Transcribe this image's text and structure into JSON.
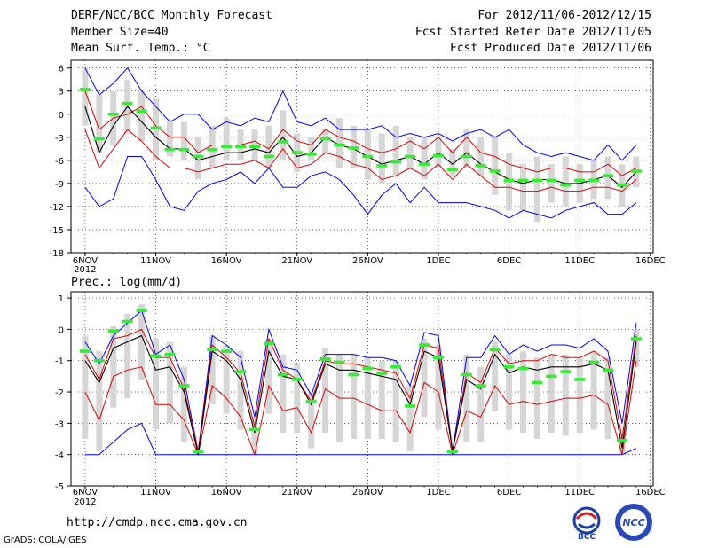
{
  "header": {
    "title": "DERF/NCC/BCC Monthly Forecast",
    "member_size": "Member Size=40",
    "variable1": "Mean Surf. Temp.: °C",
    "period": "For 2012/11/06-2012/12/15",
    "started": "Fcst Started Refer Date 2012/11/05",
    "produced": "Fcst Produced Date 2012/11/06"
  },
  "footer": {
    "url": "http://cmdp.ncc.cma.gov.cn",
    "grads": "GrADS: COLA/IGES",
    "logo_bcc": "BCC",
    "logo_ncc": "NCC"
  },
  "colors": {
    "envelope": "#0000ff",
    "spread": "#dd0000",
    "mean": "#000000",
    "median": "#33ee33",
    "box": "#d6d6d6"
  },
  "chart_data": [
    {
      "type": "line",
      "title": "Mean Surf. Temp.: °C",
      "days": 40,
      "start_day_index": 1,
      "x_tick_labels": [
        "6NOV",
        "11NOV",
        "16NOV",
        "21NOV",
        "26NOV",
        "1DEC",
        "6DEC",
        "11DEC",
        "16DEC"
      ],
      "x_tick_day": [
        1,
        6,
        11,
        16,
        21,
        26,
        31,
        36,
        41
      ],
      "year_label": "2012",
      "ylim": [
        -18,
        7
      ],
      "y_ticks": [
        6,
        3,
        0,
        -3,
        -6,
        -9,
        -12,
        -15,
        -18
      ],
      "y_tick_labels": [
        "6",
        "3",
        "0",
        "-3",
        "-6",
        "-9",
        "-12",
        "-15",
        "-18"
      ],
      "series": [
        {
          "name": "max",
          "values": [
            6,
            2.5,
            4,
            6,
            3,
            1,
            -1,
            0,
            0,
            -2,
            -1,
            -1.5,
            -0.5,
            -1,
            3,
            -1,
            -1.5,
            -0.5,
            -2,
            -2,
            -2,
            -1.5,
            -3,
            -2.5,
            -3,
            -2.5,
            -3.5,
            -2.5,
            -2,
            -3,
            -2,
            -4,
            -5,
            -5.5,
            -5,
            -5.5,
            -6,
            -4,
            -6,
            -4
          ]
        },
        {
          "name": "upper",
          "values": [
            3,
            -2,
            -0.5,
            0,
            1,
            -1.5,
            -3,
            -3,
            -5,
            -4,
            -4,
            -4,
            -3.5,
            -4.5,
            -2,
            -3.5,
            -4,
            -2,
            -3,
            -3.5,
            -4.5,
            -5,
            -4.5,
            -3.5,
            -4.5,
            -3,
            -5,
            -3,
            -5,
            -5.5,
            -6.5,
            -7,
            -7.5,
            -7,
            -7,
            -7.5,
            -7.5,
            -6.5,
            -8,
            -7
          ]
        },
        {
          "name": "mean",
          "values": [
            1,
            -5,
            -1.5,
            1,
            -1,
            -3,
            -4.5,
            -4.5,
            -6,
            -5.5,
            -5,
            -5,
            -4.5,
            -5,
            -3,
            -5.5,
            -5,
            -3,
            -4,
            -4.5,
            -5.5,
            -6.5,
            -6,
            -5.5,
            -6.5,
            -5,
            -6.5,
            -5,
            -6.5,
            -7.5,
            -8.5,
            -9,
            -8.5,
            -8.5,
            -9,
            -9,
            -8.5,
            -8,
            -9.5,
            -7.5
          ]
        },
        {
          "name": "lower",
          "values": [
            -2,
            -7,
            -4.5,
            -2,
            -3.5,
            -5.5,
            -7,
            -7,
            -7.5,
            -7,
            -6.5,
            -6.5,
            -6,
            -7,
            -4.5,
            -7,
            -6.5,
            -5,
            -5.5,
            -6.5,
            -7,
            -8.5,
            -8,
            -7,
            -8,
            -6.5,
            -8.5,
            -6.5,
            -8,
            -9.5,
            -9.5,
            -10,
            -10,
            -9.5,
            -10,
            -10,
            -9.5,
            -9.5,
            -10,
            -8.5
          ]
        },
        {
          "name": "min",
          "values": [
            -9.5,
            -12,
            -11,
            -5.5,
            -5.5,
            -8.5,
            -12,
            -12.5,
            -10,
            -9,
            -8.5,
            -7.5,
            -9,
            -7,
            -9.5,
            -9.5,
            -8,
            -7.5,
            -8.5,
            -10.5,
            -13,
            -10.5,
            -9,
            -11.5,
            -9.5,
            -11.5,
            -11.5,
            -11.5,
            -12,
            -12.5,
            -13.5,
            -12.5,
            -13,
            -13.5,
            -12.5,
            -12,
            -11.5,
            -13,
            -13,
            -11.5
          ]
        },
        {
          "name": "median",
          "values": [
            3.2,
            -3.2,
            0,
            1.4,
            0.4,
            -1.8,
            -4.6,
            -4.6,
            -5.5,
            -4.6,
            -4.2,
            -4.2,
            -4.2,
            -5.5,
            -3.6,
            -5,
            -5.2,
            -3.2,
            -4,
            -4.4,
            -5.5,
            -6.7,
            -6.2,
            -5.5,
            -6.5,
            -5.4,
            -7.2,
            -5.5,
            -6.7,
            -7.4,
            -8.6,
            -8.6,
            -8.6,
            -8.6,
            -9.2,
            -8.6,
            -8.6,
            -8,
            -9.2,
            -7.4
          ]
        },
        {
          "name": "box_top",
          "values": [
            6,
            2.5,
            3,
            4.5,
            3,
            2,
            -1,
            -1,
            -3,
            -1.5,
            -0.5,
            -2,
            -2,
            -1.5,
            0.5,
            -2.5,
            -3,
            -2,
            -0.5,
            -1.5,
            -2,
            -2.5,
            -1.5,
            -3,
            -3,
            -3,
            -4.5,
            -2,
            -3,
            -3,
            -5,
            -6.5,
            -5.5,
            -6.5,
            -5.5,
            -6.5,
            -6,
            -5.5,
            -6.5,
            -5.5
          ]
        },
        {
          "name": "box_bottom",
          "values": [
            -1.5,
            -5,
            -4,
            -2.5,
            -3.5,
            -6,
            -5.5,
            -6,
            -8.5,
            -7,
            -6,
            -6,
            -6,
            -7,
            -6,
            -7.5,
            -6,
            -5,
            -7,
            -7,
            -8.5,
            -9,
            -8,
            -7,
            -8.5,
            -7,
            -8,
            -7,
            -8,
            -10.5,
            -12.5,
            -12.5,
            -14,
            -11.5,
            -12,
            -11.5,
            -11,
            -11,
            -12,
            -9.5
          ]
        }
      ]
    },
    {
      "type": "line",
      "title": "Prec.: log(mm/d)",
      "days": 40,
      "start_day_index": 1,
      "x_tick_labels": [
        "6NOV",
        "11NOV",
        "16NOV",
        "21NOV",
        "26NOV",
        "1DEC",
        "6DEC",
        "11DEC",
        "16DEC"
      ],
      "x_tick_day": [
        1,
        6,
        11,
        16,
        21,
        26,
        31,
        36,
        41
      ],
      "year_label": "2012",
      "ylim": [
        -5,
        1.2
      ],
      "y_ticks": [
        1,
        0,
        -1,
        -2,
        -3,
        -4,
        -5
      ],
      "y_tick_labels": [
        "1",
        "0",
        "-1",
        "-2",
        "-3",
        "-4",
        "-5"
      ],
      "series": [
        {
          "name": "max",
          "values": [
            -0.4,
            -1.1,
            -0.2,
            0.2,
            0.6,
            -0.8,
            -0.5,
            -1.6,
            -3.9,
            -0.2,
            -0.5,
            -0.9,
            -2.8,
            0,
            -1.2,
            -1.3,
            -2.1,
            -0.8,
            -0.8,
            -0.8,
            -0.9,
            -0.9,
            -1,
            -1.8,
            -0.1,
            -0.2,
            -3.9,
            -0.9,
            -0.9,
            -0.2,
            -0.8,
            -0.5,
            -0.7,
            -0.5,
            -0.5,
            -0.6,
            -0.3,
            -0.7,
            -3,
            0.2
          ]
        },
        {
          "name": "upper",
          "values": [
            -0.8,
            -1.6,
            -0.3,
            -0.2,
            0,
            -0.9,
            -0.9,
            -1.9,
            -3.9,
            -0.5,
            -0.9,
            -1.4,
            -3.1,
            -0.3,
            -1.3,
            -1.6,
            -2.3,
            -1,
            -1.1,
            -1.1,
            -1.2,
            -1.3,
            -1.4,
            -2.2,
            -0.5,
            -0.6,
            -3.9,
            -1.4,
            -1.7,
            -0.6,
            -1.1,
            -1,
            -1,
            -0.8,
            -0.9,
            -0.9,
            -0.7,
            -1,
            -3.5,
            -0.2
          ]
        },
        {
          "name": "mean",
          "values": [
            -1,
            -1.7,
            -0.6,
            -0.4,
            -0.2,
            -1.3,
            -1.2,
            -2,
            -4,
            -0.7,
            -1,
            -1.6,
            -3.3,
            -0.7,
            -1.5,
            -1.6,
            -2.4,
            -1.1,
            -1.3,
            -1.3,
            -1.4,
            -1.5,
            -1.6,
            -2.4,
            -0.7,
            -0.9,
            -3.9,
            -1.6,
            -1.9,
            -0.8,
            -1.4,
            -1.2,
            -1.3,
            -1.2,
            -1.2,
            -1.2,
            -1.1,
            -1.3,
            -3.8,
            -0.4
          ]
        },
        {
          "name": "lower",
          "values": [
            -2,
            -2.9,
            -1.5,
            -1.3,
            -1.2,
            -2.4,
            -2.4,
            -2.9,
            -4,
            -1.8,
            -2.2,
            -2.8,
            -4,
            -1.8,
            -2.6,
            -2.5,
            -3.3,
            -1.9,
            -2.2,
            -2.2,
            -2.4,
            -2.6,
            -2.6,
            -3.3,
            -1.7,
            -2,
            -4,
            -2.6,
            -2.8,
            -1.8,
            -2.4,
            -2.3,
            -2.4,
            -2.3,
            -2.2,
            -2.2,
            -2.1,
            -2.4,
            -4,
            -1
          ]
        },
        {
          "name": "min",
          "values": [
            -4,
            -4,
            -3.6,
            -3.2,
            -3,
            -4,
            -4,
            -4,
            -4,
            -4,
            -4,
            -4,
            -4,
            -4,
            -4,
            -4,
            -4,
            -4,
            -4,
            -4,
            -4,
            -4,
            -4,
            -4,
            -4,
            -4,
            -4,
            -4,
            -4,
            -4,
            -4,
            -4,
            -4,
            -4,
            -4,
            -4,
            -4,
            -4,
            -4,
            -3.8
          ]
        },
        {
          "name": "median",
          "values": [
            -0.7,
            -1,
            -0.05,
            0.25,
            0.6,
            -0.85,
            -0.8,
            -1.8,
            -3.9,
            -0.65,
            -0.7,
            -1.35,
            -3.2,
            -0.45,
            -1.45,
            -1.6,
            -2.3,
            -0.95,
            -1.05,
            -1.45,
            -1.25,
            -1.4,
            -1.2,
            -2.45,
            -0.5,
            -0.9,
            -3.9,
            -1.45,
            -1.8,
            -0.65,
            -1.2,
            -1.25,
            -1.7,
            -1.5,
            -1.35,
            -1.6,
            -1.05,
            -1.3,
            -3.55,
            -0.3
          ]
        },
        {
          "name": "box_top",
          "values": [
            -0.2,
            -0.7,
            0.1,
            0.5,
            0.8,
            -0.3,
            -0.4,
            -1.2,
            -3.9,
            -0.2,
            -0.5,
            -0.7,
            -2.8,
            -0.3,
            -0.8,
            -1.1,
            -2,
            -0.6,
            -0.8,
            -0.8,
            -0.9,
            -1,
            -1,
            -1.8,
            -0.3,
            -0.5,
            -3.9,
            -0.8,
            -1.2,
            -0.4,
            -0.8,
            -0.7,
            -0.9,
            -0.8,
            -0.8,
            -0.9,
            -0.7,
            -0.9,
            -3.2,
            0
          ]
        },
        {
          "name": "box_bottom",
          "values": [
            -3.5,
            -3.9,
            -2.5,
            -2.2,
            -1.6,
            -3.2,
            -3,
            -3.6,
            -4,
            -2.4,
            -2.7,
            -3.2,
            -4,
            -2.7,
            -3.3,
            -3.3,
            -3.8,
            -3.3,
            -3.6,
            -3.5,
            -3.5,
            -3.5,
            -3.6,
            -3.9,
            -2.8,
            -3.2,
            -4,
            -3.6,
            -3.6,
            -2.6,
            -3.2,
            -3.3,
            -3.5,
            -3.3,
            -3.4,
            -3.3,
            -3.2,
            -3.5,
            -4,
            -1.2
          ]
        }
      ]
    }
  ]
}
